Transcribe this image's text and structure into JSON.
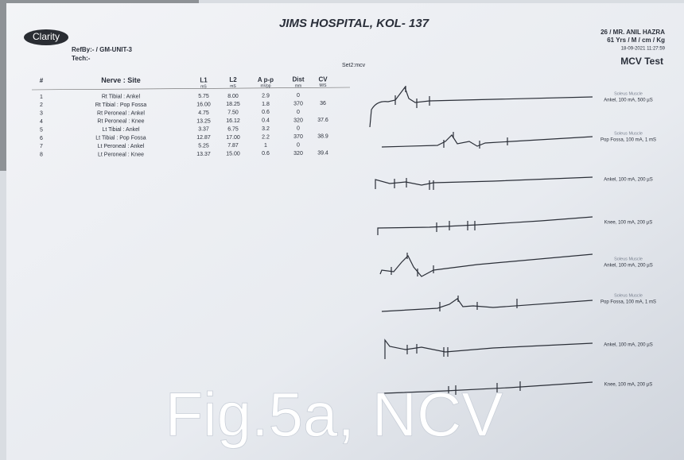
{
  "logo": "Clarity",
  "header": {
    "title": "JIMS HOSPITAL, KOL- 137",
    "ref_by": "RefBy:- / GM-UNIT-3",
    "tech": "Tech:-",
    "patient": "26 / MR. ANIL HAZRA",
    "patient_info": "61 Yrs / M / cm / Kg",
    "date": "18-09-2021 11:27:59",
    "test": "MCV Test"
  },
  "set_label": "Set2:mcv",
  "table": {
    "columns": [
      "#",
      "Nerve : Site",
      "L1",
      "L2",
      "A p-p",
      "Dist",
      "CV"
    ],
    "units": [
      "mS",
      "mS",
      "mVpp",
      "mm",
      "M/S"
    ],
    "rows": [
      [
        "1",
        "Rt Tibial : Ankel",
        "5.75",
        "8.00",
        "2.9",
        "0"
      ],
      [
        "2",
        "Rt Tibial : Pop Fossa",
        "16.00",
        "18.25",
        "1.8",
        "370",
        "36"
      ],
      [
        "3",
        "Rt Peroneal : Ankel",
        "4.75",
        "7.50",
        "0.6",
        "0"
      ],
      [
        "4",
        "Rt Peroneal : Knee",
        "13.25",
        "16.12",
        "0.4",
        "320",
        "37.6"
      ],
      [
        "5",
        "Lt Tibial : Ankel",
        "3.37",
        "6.75",
        "3.2",
        "0"
      ],
      [
        "6",
        "Lt Tibial : Pop Fossa",
        "12.87",
        "17.00",
        "2.2",
        "370",
        "38.9"
      ],
      [
        "7",
        "Lt Peroneal : Ankel",
        "5.25",
        "7.87",
        "1",
        "0"
      ],
      [
        "8",
        "Lt Peroneal : Knee",
        "13.37",
        "15.00",
        "0.6",
        "320",
        "39.4"
      ]
    ]
  },
  "traces": [
    [
      "Soleus Muscle",
      "Ankel, 100 mA, 500 µS"
    ],
    [
      "Soleus Muscle",
      "Pop Fossa, 100 mA, 1 mS"
    ],
    [
      "Ankel, 100 mA, 200 µS"
    ],
    [
      "Knee, 100 mA, 200 µS"
    ],
    [
      "Soleus Muscle",
      "Ankel, 100 mA, 200 µS"
    ],
    [
      "Soleus Muscle",
      "Pop Fossa, 100 mA, 1 mS"
    ],
    [
      "Ankel, 100 mA, 200 µS"
    ],
    [
      "Knee, 100 mA, 200 µS"
    ]
  ],
  "caption": "Fig.5a, NCV"
}
